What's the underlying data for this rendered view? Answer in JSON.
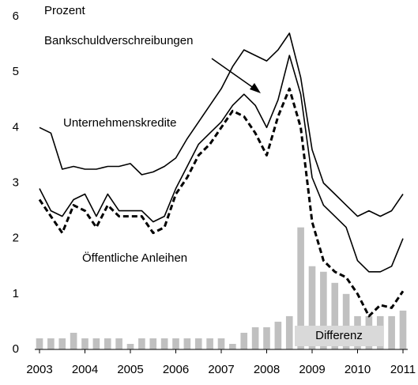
{
  "chart_data": {
    "type": "line",
    "y_label": "Prozent",
    "x": [
      2003,
      2003.25,
      2003.5,
      2003.75,
      2004,
      2004.25,
      2004.5,
      2004.75,
      2005,
      2005.25,
      2005.5,
      2005.75,
      2006,
      2006.25,
      2006.5,
      2006.75,
      2007,
      2007.25,
      2007.5,
      2007.75,
      2008,
      2008.25,
      2008.5,
      2008.75,
      2009,
      2009.25,
      2009.5,
      2009.75,
      2010,
      2010.25,
      2010.5,
      2010.75,
      2011
    ],
    "series": [
      {
        "name": "Unternehmenskredite",
        "color": "#000000",
        "style": "solid",
        "values": [
          4.0,
          3.9,
          3.25,
          3.3,
          3.25,
          3.25,
          3.3,
          3.3,
          3.35,
          3.15,
          3.2,
          3.3,
          3.45,
          3.8,
          4.1,
          4.4,
          4.7,
          5.1,
          5.4,
          5.3,
          5.2,
          5.4,
          5.7,
          4.9,
          3.6,
          3.0,
          2.8,
          2.6,
          2.4,
          2.5,
          2.4,
          2.5,
          2.8
        ]
      },
      {
        "name": "Bankschuldverschreibungen",
        "color": "#000000",
        "style": "solid",
        "values": [
          2.9,
          2.5,
          2.4,
          2.7,
          2.8,
          2.4,
          2.8,
          2.5,
          2.5,
          2.5,
          2.3,
          2.4,
          2.9,
          3.3,
          3.7,
          3.9,
          4.1,
          4.4,
          4.6,
          4.4,
          4.0,
          4.5,
          5.3,
          4.6,
          3.1,
          2.6,
          2.4,
          2.2,
          1.6,
          1.4,
          1.4,
          1.5,
          2.0
        ]
      },
      {
        "name": "Öffentliche Anleihen",
        "color": "#000000",
        "style": "dashed",
        "values": [
          2.7,
          2.4,
          2.1,
          2.6,
          2.5,
          2.2,
          2.6,
          2.4,
          2.4,
          2.4,
          2.1,
          2.2,
          2.8,
          3.1,
          3.5,
          3.7,
          4.0,
          4.3,
          4.2,
          3.9,
          3.5,
          4.2,
          4.7,
          4.0,
          2.3,
          1.6,
          1.4,
          1.3,
          1.0,
          0.6,
          0.8,
          0.75,
          1.05
        ]
      },
      {
        "name": "Differenz",
        "color": "#c0c0c0",
        "style": "bar",
        "values": [
          0.2,
          0.2,
          0.2,
          0.3,
          0.2,
          0.2,
          0.2,
          0.2,
          0.1,
          0.2,
          0.2,
          0.2,
          0.2,
          0.2,
          0.2,
          0.2,
          0.2,
          0.1,
          0.3,
          0.4,
          0.4,
          0.5,
          0.6,
          2.2,
          1.5,
          1.4,
          1.2,
          1.0,
          0.6,
          0.6,
          0.6,
          0.6,
          0.7
        ]
      }
    ],
    "xlim": [
      2003,
      2011
    ],
    "xticks": [
      2003,
      2004,
      2005,
      2006,
      2007,
      2008,
      2009,
      2010,
      2011
    ],
    "ylim": [
      0,
      6
    ],
    "yticks": [
      0,
      1,
      2,
      3,
      4,
      5,
      6
    ]
  }
}
